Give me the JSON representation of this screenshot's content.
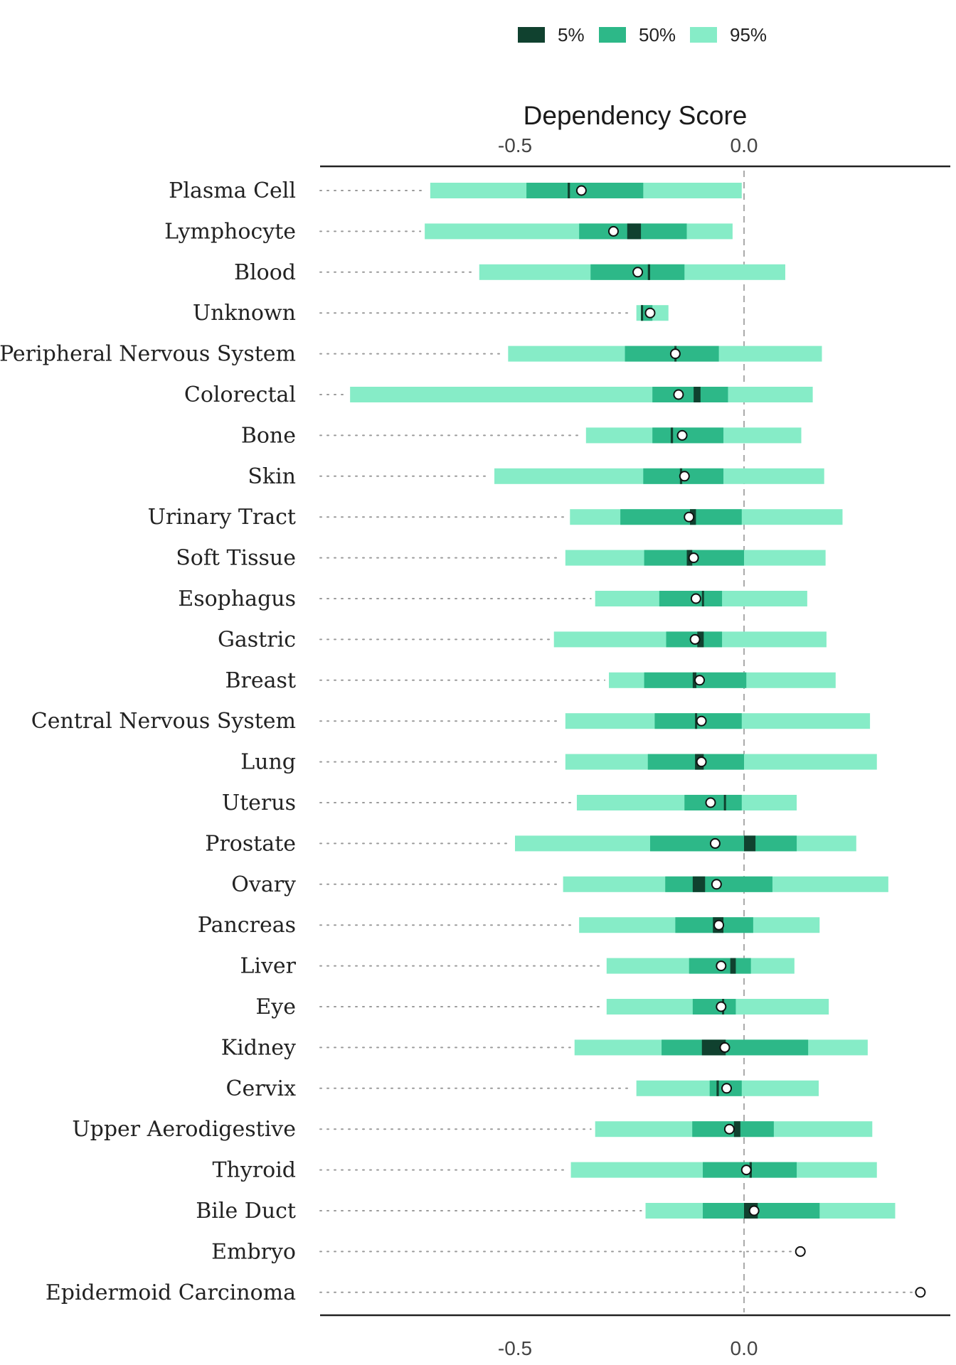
{
  "chart_data": {
    "type": "range-bar",
    "title": "Dependency Score",
    "xlabel": "Dependency Score",
    "xlim": [
      -0.92,
      0.45
    ],
    "xticks": [
      -0.5,
      0.0
    ],
    "xtick_labels": [
      "-0.5",
      "0.0"
    ],
    "reference_line": 0.0,
    "legend": {
      "position": "top",
      "entries": [
        {
          "label": "5%",
          "color": "#10412f"
        },
        {
          "label": "50%",
          "color": "#2db888"
        },
        {
          "label": "95%",
          "color": "#86ecc7"
        }
      ]
    },
    "colors": {
      "inner": "#10412f",
      "mid": "#2db888",
      "outer": "#86ecc7",
      "axis": "#222222",
      "dots": "#9a9a9a",
      "zero_line": "#aaaaaa"
    },
    "categories": [
      "Plasma Cell",
      "Lymphocyte",
      "Blood",
      "Unknown",
      "Peripheral Nervous System",
      "Colorectal",
      "Bone",
      "Skin",
      "Urinary Tract",
      "Soft Tissue",
      "Esophagus",
      "Gastric",
      "Breast",
      "Central Nervous System",
      "Lung",
      "Uterus",
      "Prostate",
      "Ovary",
      "Pancreas",
      "Liver",
      "Eye",
      "Kidney",
      "Cervix",
      "Upper Aerodigestive",
      "Thyroid",
      "Bile Duct",
      "Embryo",
      "Epidermoid Carcinoma"
    ],
    "series": [
      {
        "category": "Plasma Cell",
        "min": -0.92,
        "outer": [
          -0.685,
          -0.005
        ],
        "mid": [
          -0.475,
          -0.22
        ],
        "inner": [
          -0.385,
          -0.38
        ],
        "point": -0.355
      },
      {
        "category": "Lymphocyte",
        "min": -0.92,
        "outer": [
          -0.697,
          -0.025
        ],
        "mid": [
          -0.36,
          -0.125
        ],
        "inner": [
          -0.255,
          -0.225
        ],
        "point": -0.285
      },
      {
        "category": "Blood",
        "min": -0.92,
        "outer": [
          -0.578,
          0.09
        ],
        "mid": [
          -0.335,
          -0.13
        ],
        "inner": [
          -0.21,
          -0.205
        ],
        "point": -0.232
      },
      {
        "category": "Unknown",
        "min": -0.92,
        "outer": [
          -0.235,
          -0.165
        ],
        "mid": [
          -0.225,
          -0.2
        ],
        "inner": [
          -0.225,
          -0.222
        ],
        "point": -0.205
      },
      {
        "category": "Peripheral Nervous System",
        "min": -0.92,
        "outer": [
          -0.515,
          0.17
        ],
        "mid": [
          -0.26,
          -0.055
        ],
        "inner": [
          -0.152,
          -0.148
        ],
        "point": -0.15
      },
      {
        "category": "Colorectal",
        "min": -0.92,
        "outer": [
          -0.86,
          0.15
        ],
        "mid": [
          -0.2,
          -0.035
        ],
        "inner": [
          -0.11,
          -0.095
        ],
        "point": -0.143
      },
      {
        "category": "Bone",
        "min": -0.92,
        "outer": [
          -0.345,
          0.125
        ],
        "mid": [
          -0.2,
          -0.045
        ],
        "inner": [
          -0.16,
          -0.155
        ],
        "point": -0.135
      },
      {
        "category": "Skin",
        "min": -0.92,
        "outer": [
          -0.545,
          0.175
        ],
        "mid": [
          -0.22,
          -0.045
        ],
        "inner": [
          -0.14,
          -0.135
        ],
        "point": -0.13
      },
      {
        "category": "Urinary Tract",
        "min": -0.92,
        "outer": [
          -0.38,
          0.215
        ],
        "mid": [
          -0.27,
          -0.005
        ],
        "inner": [
          -0.118,
          -0.105
        ],
        "point": -0.12
      },
      {
        "category": "Soft Tissue",
        "min": -0.92,
        "outer": [
          -0.39,
          0.178
        ],
        "mid": [
          -0.218,
          0.0
        ],
        "inner": [
          -0.125,
          -0.113
        ],
        "point": -0.11
      },
      {
        "category": "Esophagus",
        "min": -0.92,
        "outer": [
          -0.325,
          0.138
        ],
        "mid": [
          -0.185,
          -0.048
        ],
        "inner": [
          -0.092,
          -0.088
        ],
        "point": -0.105
      },
      {
        "category": "Gastric",
        "min": -0.92,
        "outer": [
          -0.415,
          0.18
        ],
        "mid": [
          -0.17,
          -0.048
        ],
        "inner": [
          -0.102,
          -0.088
        ],
        "point": -0.107
      },
      {
        "category": "Breast",
        "min": -0.92,
        "outer": [
          -0.295,
          0.2
        ],
        "mid": [
          -0.218,
          0.005
        ],
        "inner": [
          -0.112,
          -0.104
        ],
        "point": -0.097
      },
      {
        "category": "Central Nervous System",
        "min": -0.92,
        "outer": [
          -0.39,
          0.275
        ],
        "mid": [
          -0.195,
          -0.005
        ],
        "inner": [
          -0.107,
          -0.103
        ],
        "point": -0.093
      },
      {
        "category": "Lung",
        "min": -0.92,
        "outer": [
          -0.39,
          0.29
        ],
        "mid": [
          -0.21,
          0.0
        ],
        "inner": [
          -0.107,
          -0.088
        ],
        "point": -0.093
      },
      {
        "category": "Uterus",
        "min": -0.92,
        "outer": [
          -0.365,
          0.115
        ],
        "mid": [
          -0.13,
          -0.005
        ],
        "inner": [
          -0.044,
          -0.04
        ],
        "point": -0.073
      },
      {
        "category": "Prostate",
        "min": -0.92,
        "outer": [
          -0.5,
          0.245
        ],
        "mid": [
          -0.205,
          0.115
        ],
        "inner": [
          0.0,
          0.025
        ],
        "point": -0.063
      },
      {
        "category": "Ovary",
        "min": -0.92,
        "outer": [
          -0.395,
          0.315
        ],
        "mid": [
          -0.172,
          0.062
        ],
        "inner": [
          -0.112,
          -0.085
        ],
        "point": -0.06
      },
      {
        "category": "Pancreas",
        "min": -0.92,
        "outer": [
          -0.36,
          0.165
        ],
        "mid": [
          -0.15,
          0.02
        ],
        "inner": [
          -0.068,
          -0.045
        ],
        "point": -0.055
      },
      {
        "category": "Liver",
        "min": -0.92,
        "outer": [
          -0.3,
          0.11
        ],
        "mid": [
          -0.12,
          0.015
        ],
        "inner": [
          -0.03,
          -0.018
        ],
        "point": -0.05
      },
      {
        "category": "Eye",
        "min": -0.92,
        "outer": [
          -0.3,
          0.185
        ],
        "mid": [
          -0.112,
          -0.018
        ],
        "inner": [
          -0.048,
          -0.044
        ],
        "point": -0.05
      },
      {
        "category": "Kidney",
        "min": -0.92,
        "outer": [
          -0.37,
          0.27
        ],
        "mid": [
          -0.18,
          0.14
        ],
        "inner": [
          -0.092,
          -0.04
        ],
        "point": -0.042
      },
      {
        "category": "Cervix",
        "min": -0.92,
        "outer": [
          -0.235,
          0.163
        ],
        "mid": [
          -0.075,
          -0.005
        ],
        "inner": [
          -0.06,
          -0.055
        ],
        "point": -0.038
      },
      {
        "category": "Upper Aerodigestive",
        "min": -0.92,
        "outer": [
          -0.325,
          0.28
        ],
        "mid": [
          -0.113,
          0.065
        ],
        "inner": [
          -0.022,
          -0.008
        ],
        "point": -0.032
      },
      {
        "category": "Thyroid",
        "min": -0.92,
        "outer": [
          -0.378,
          0.29
        ],
        "mid": [
          -0.09,
          0.115
        ],
        "inner": [
          0.012,
          0.017
        ],
        "point": 0.005
      },
      {
        "category": "Bile Duct",
        "min": -0.92,
        "outer": [
          -0.215,
          0.33
        ],
        "mid": [
          -0.09,
          0.165
        ],
        "inner": [
          0.0,
          0.03
        ],
        "point": 0.022
      },
      {
        "category": "Embryo",
        "min": -0.92,
        "outer": null,
        "mid": null,
        "inner": null,
        "point": 0.123
      },
      {
        "category": "Epidermoid Carcinoma",
        "min": -0.92,
        "outer": null,
        "mid": null,
        "inner": null,
        "point": 0.385
      }
    ]
  }
}
